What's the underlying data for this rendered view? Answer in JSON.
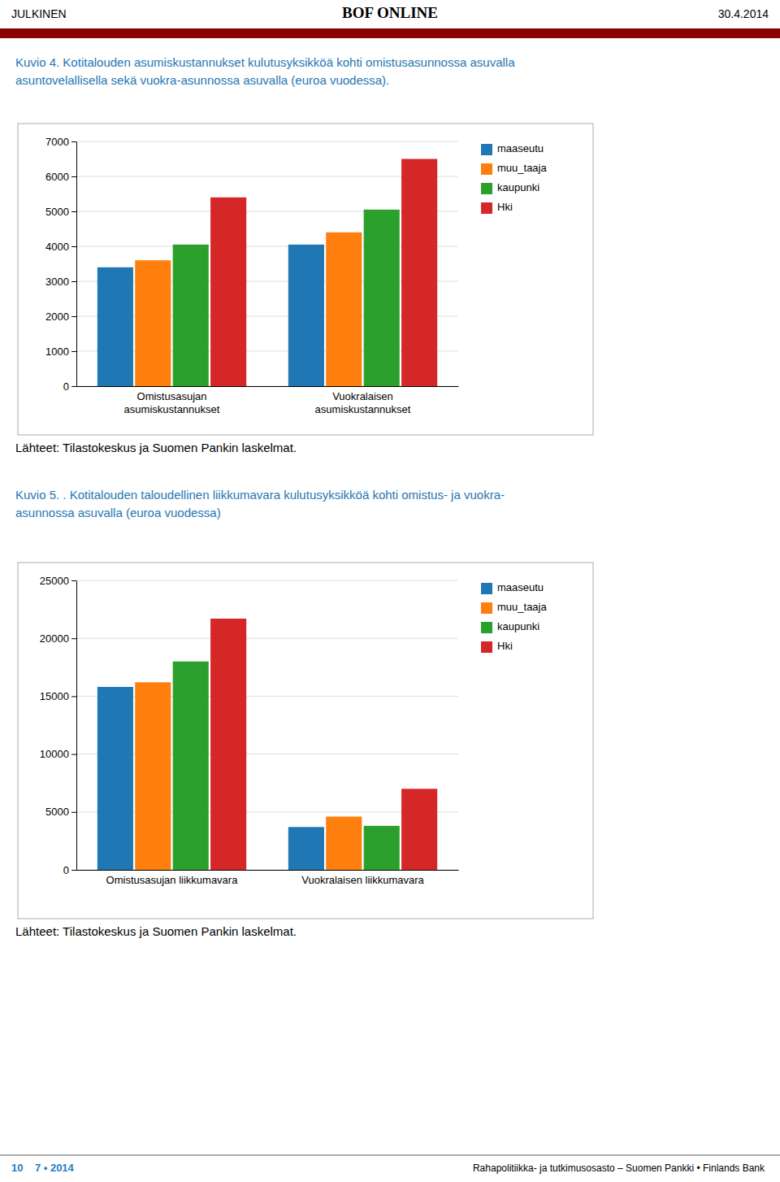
{
  "header": {
    "left": "JULKINEN",
    "center": "BOF ONLINE",
    "right": "30.4.2014"
  },
  "footer": {
    "left": "10    7 • 2014",
    "right": "Rahapolitiikka- ja tutkimusosasto – Suomen Pankki • Finlands Bank"
  },
  "chart_data": [
    {
      "type": "bar",
      "title": "Kuvio 4. Kotitalouden asumiskustannukset kulutusyksikköä kohti omistusasunnossa asuvalla\nasuntovelallisella sekä vuokra-asunnossa asuvalla (euroa vuodessa).",
      "categories": [
        "Omistusasujan\nasumiskustannukset",
        "Vuokralaisen\nasumiskustannukset"
      ],
      "series": [
        {
          "name": "maaseutu",
          "values": [
            3400,
            4050
          ]
        },
        {
          "name": "muu_taaja",
          "values": [
            3600,
            4400
          ]
        },
        {
          "name": "kaupunki",
          "values": [
            4050,
            5050
          ]
        },
        {
          "name": "Hki",
          "values": [
            5400,
            6500
          ]
        }
      ],
      "ylim": [
        0,
        7000
      ],
      "yticks": [
        0,
        1000,
        2000,
        3000,
        4000,
        5000,
        6000,
        7000
      ],
      "grid": true,
      "legend": "right",
      "annotations": [
        "Lähteet: Tilastokeskus ja Suomen Pankin laskelmat."
      ]
    },
    {
      "type": "bar",
      "title": "Kuvio 5. . Kotitalouden taloudellinen liikkumavara kulutusyksikköä kohti omistus- ja vuokra-\nasunnossa asuvalla (euroa vuodessa)",
      "categories": [
        "Omistusasujan liikkumavara",
        "Vuokralaisen liikkumavara"
      ],
      "series": [
        {
          "name": "maaseutu",
          "values": [
            15800,
            3700
          ]
        },
        {
          "name": "muu_taaja",
          "values": [
            16200,
            4600
          ]
        },
        {
          "name": "kaupunki",
          "values": [
            18000,
            3800
          ]
        },
        {
          "name": "Hki",
          "values": [
            21700,
            7000
          ]
        }
      ],
      "ylim": [
        0,
        25000
      ],
      "yticks": [
        0,
        5000,
        10000,
        15000,
        20000,
        25000
      ],
      "grid": true,
      "legend": "right",
      "annotations": [
        "Lähteet: Tilastokeskus ja Suomen Pankin laskelmat."
      ]
    }
  ]
}
